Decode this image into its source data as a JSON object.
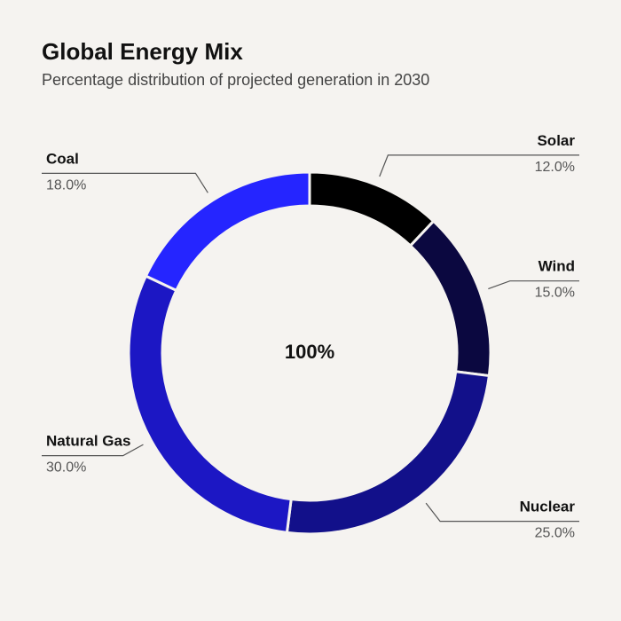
{
  "chart_data": {
    "type": "pie",
    "title": "Global Energy Mix",
    "subtitle": "Percentage distribution of projected generation in 2030",
    "center_label": "100%",
    "donut": true,
    "categories": [
      "Solar",
      "Wind",
      "Nuclear",
      "Natural Gas",
      "Coal"
    ],
    "values": [
      12.0,
      15.0,
      25.0,
      30.0,
      18.0
    ],
    "value_labels": [
      "12.0%",
      "15.0%",
      "25.0%",
      "30.0%",
      "18.0%"
    ],
    "colors": [
      "#000000",
      "#0b0840",
      "#12108a",
      "#1c17c4",
      "#2525ff"
    ],
    "legend": "none"
  }
}
